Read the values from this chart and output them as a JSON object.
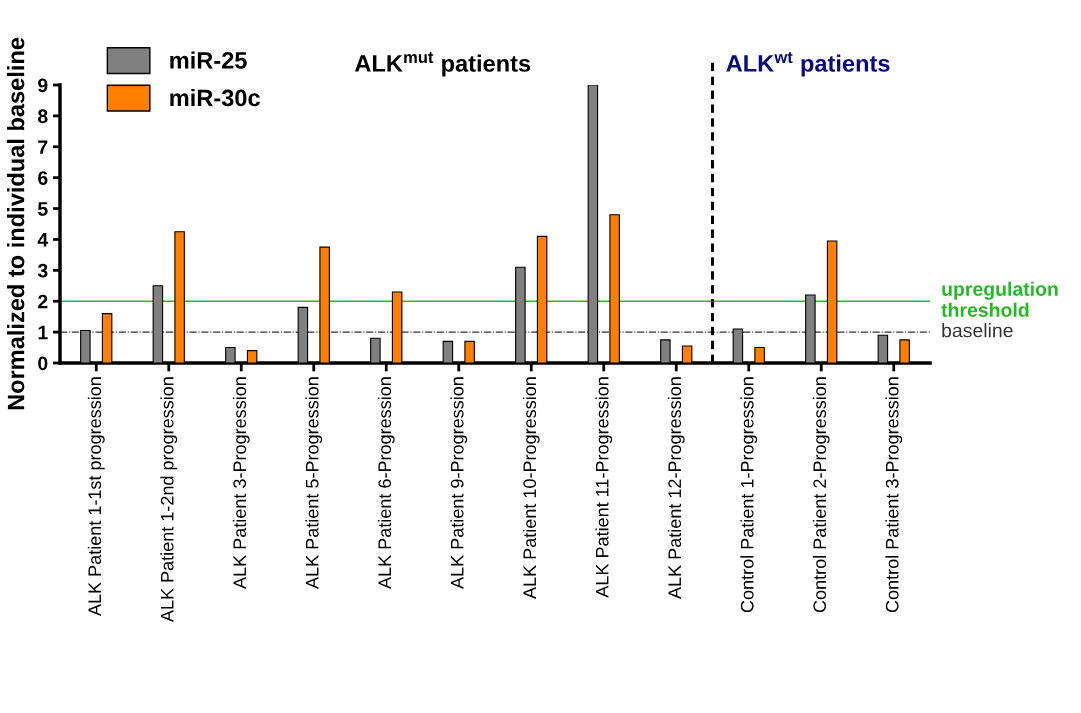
{
  "chart_data": {
    "type": "bar",
    "ylabel": "Normalized to individual baseline",
    "annotations": [
      "ALK$^{mut}$ patients",
      "ALK$^{wt}$ patients"
    ],
    "categories": [
      "ALK Patient 1-1st progression",
      "ALK Patient 1-2nd progression",
      "ALK Patient 3-Progression",
      "ALK Patient 5-Progression",
      "ALK Patient 6-Progression",
      "ALK Patient 9-Progression",
      "ALK Patient 10-Progression",
      "ALK Patient 11-Progression",
      "ALK Patient 12-Progression",
      "Control Patient 1-Progression",
      "Control Patient 2-Progression",
      "Control Patient 3-Progression"
    ],
    "series": [
      {
        "name": "miR-25",
        "color": "#808080",
        "values": [
          1.05,
          2.5,
          0.5,
          1.8,
          0.8,
          0.7,
          3.1,
          9,
          0.75,
          1.1,
          2.2,
          0.9
        ]
      },
      {
        "name": "miR-30c",
        "color": "#ff8000",
        "values": [
          1.6,
          4.25,
          0.4,
          3.75,
          2.3,
          0.7,
          4.1,
          4.8,
          0.55,
          0.5,
          3.95,
          0.75
        ]
      }
    ],
    "ylim": [
      0,
      9
    ],
    "yticks": [
      0,
      1,
      2,
      3,
      4,
      5,
      6,
      7,
      8,
      9
    ],
    "ref_lines": [
      {
        "axis": "y",
        "value": 2,
        "label": "upregulation\nthreshold",
        "color": "#22bb22",
        "line_style": "solid"
      },
      {
        "axis": "y",
        "value": 1,
        "label": "baseline",
        "color": "#333333",
        "line_style": "dashdot"
      }
    ],
    "legend": "top left",
    "grid": false
  }
}
